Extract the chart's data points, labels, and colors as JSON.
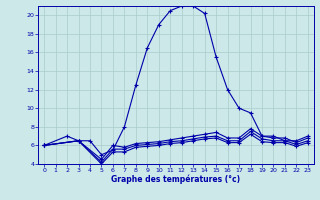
{
  "title": "Graphe des températures (°c)",
  "bg_color": "#cce8e8",
  "line_color": "#0000aa",
  "grid_color": "#aacccc",
  "xlim": [
    -0.5,
    23.5
  ],
  "ylim": [
    4,
    21
  ],
  "yticks": [
    4,
    6,
    8,
    10,
    12,
    14,
    16,
    18,
    20
  ],
  "xticks": [
    0,
    1,
    2,
    3,
    4,
    5,
    6,
    7,
    8,
    9,
    10,
    11,
    12,
    13,
    14,
    15,
    16,
    17,
    18,
    19,
    20,
    21,
    22,
    23
  ],
  "series": [
    {
      "x": [
        0,
        2,
        3,
        4,
        5,
        6,
        7,
        8,
        9,
        10,
        11,
        12,
        13,
        14,
        15,
        16,
        17,
        18,
        19,
        20,
        21,
        22,
        23
      ],
      "y": [
        6.0,
        7.0,
        6.5,
        6.5,
        5.0,
        5.5,
        8.0,
        12.5,
        16.5,
        19.0,
        20.5,
        21.0,
        21.0,
        20.2,
        15.5,
        12.0,
        10.0,
        9.5,
        7.0,
        7.0,
        6.5,
        6.5,
        7.0
      ]
    },
    {
      "x": [
        0,
        3,
        5,
        6,
        7,
        8,
        9,
        10,
        11,
        12,
        13,
        14,
        15,
        16,
        17,
        18,
        19,
        20,
        21,
        22,
        23
      ],
      "y": [
        6.0,
        6.5,
        4.5,
        6.0,
        5.8,
        6.2,
        6.3,
        6.4,
        6.6,
        6.8,
        7.0,
        7.2,
        7.4,
        6.8,
        6.8,
        7.8,
        7.0,
        6.8,
        6.8,
        6.3,
        6.8
      ]
    },
    {
      "x": [
        0,
        3,
        5,
        6,
        7,
        8,
        9,
        10,
        11,
        12,
        13,
        14,
        15,
        16,
        17,
        18,
        19,
        20,
        21,
        22,
        23
      ],
      "y": [
        6.0,
        6.5,
        4.2,
        5.6,
        5.6,
        6.0,
        6.1,
        6.2,
        6.4,
        6.5,
        6.7,
        6.9,
        7.0,
        6.5,
        6.5,
        7.5,
        6.7,
        6.5,
        6.5,
        6.1,
        6.5
      ]
    },
    {
      "x": [
        0,
        3,
        5,
        6,
        7,
        8,
        9,
        10,
        11,
        12,
        13,
        14,
        15,
        16,
        17,
        18,
        19,
        20,
        21,
        22,
        23
      ],
      "y": [
        6.0,
        6.5,
        4.0,
        5.3,
        5.3,
        5.8,
        5.9,
        6.0,
        6.2,
        6.3,
        6.5,
        6.7,
        6.8,
        6.3,
        6.3,
        7.2,
        6.4,
        6.3,
        6.3,
        5.9,
        6.3
      ]
    }
  ]
}
